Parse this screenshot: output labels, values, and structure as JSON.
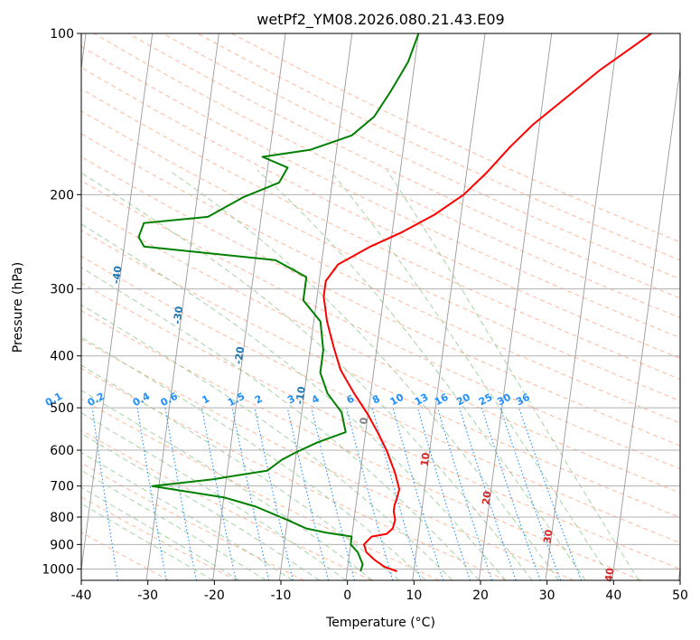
{
  "chart_data": {
    "type": "line",
    "title": "wetPf2_YM08.2026.080.21.43.E09",
    "xlabel": "Temperature (°C)",
    "ylabel": "Pressure (hPa)",
    "xlim": [
      -40,
      50
    ],
    "ylim": [
      1050,
      100
    ],
    "y_scale": "log",
    "grid": true,
    "x_ticks": [
      -40,
      -30,
      -20,
      -10,
      0,
      10,
      20,
      30,
      40,
      50
    ],
    "y_ticks": [
      100,
      200,
      300,
      400,
      500,
      600,
      700,
      800,
      900,
      1000
    ],
    "skew_isotherms": [
      -100,
      -90,
      -80,
      -70,
      -60,
      -50,
      -40,
      -30,
      -20,
      -10,
      0,
      10,
      20,
      30,
      40
    ],
    "mixing_ratio_labels": [
      "0.1",
      "0.2",
      "0.4",
      "0.6",
      "1",
      "1.5",
      "2",
      "3",
      "4",
      "6",
      "8",
      "10",
      "13",
      "16",
      "20",
      "25",
      "30",
      "36"
    ],
    "colors": {
      "temperature": "#ff0000",
      "dewpoint": "#008000",
      "isotherm_label": "#1f77b4",
      "warm_isotherm_label": "#d62728",
      "zero_label": "#808080",
      "mixing_ratio": "#1e90ff",
      "dry_adiabat": "#ffa07a",
      "moist_adiabat": "#90c890",
      "isobar": "#b0b0b0"
    },
    "series": [
      {
        "name": "Temperature",
        "points": [
          [
            7.5,
            1010
          ],
          [
            5.5,
            990
          ],
          [
            3.8,
            960
          ],
          [
            2.5,
            930
          ],
          [
            2.0,
            900
          ],
          [
            3.0,
            870
          ],
          [
            5.2,
            860
          ],
          [
            6.0,
            840
          ],
          [
            6.2,
            810
          ],
          [
            5.8,
            780
          ],
          [
            5.8,
            760
          ],
          [
            6.0,
            740
          ],
          [
            6.2,
            710
          ],
          [
            5.2,
            660
          ],
          [
            3.5,
            600
          ],
          [
            2.0,
            560
          ],
          [
            0.0,
            515
          ],
          [
            -2.5,
            470
          ],
          [
            -5.0,
            425
          ],
          [
            -6.5,
            385
          ],
          [
            -8.0,
            345
          ],
          [
            -9.0,
            310
          ],
          [
            -9.0,
            290
          ],
          [
            -7.5,
            270
          ],
          [
            -3.0,
            250
          ],
          [
            1.5,
            235
          ],
          [
            6.0,
            218
          ],
          [
            10.0,
            200
          ],
          [
            13.0,
            182
          ],
          [
            16.0,
            163
          ],
          [
            19.0,
            148
          ],
          [
            24.0,
            130
          ],
          [
            28.0,
            117
          ],
          [
            32.0,
            107
          ],
          [
            35.0,
            100
          ]
        ]
      },
      {
        "name": "Dewpoint",
        "points": [
          [
            2.0,
            1010
          ],
          [
            2.2,
            980
          ],
          [
            1.2,
            930
          ],
          [
            0.0,
            900
          ],
          [
            0.0,
            870
          ],
          [
            -4.0,
            855
          ],
          [
            -7.0,
            840
          ],
          [
            -10.0,
            810
          ],
          [
            -15.0,
            765
          ],
          [
            -20.0,
            735
          ],
          [
            -31.0,
            700
          ],
          [
            -22.0,
            680
          ],
          [
            -14.0,
            655
          ],
          [
            -12.0,
            625
          ],
          [
            -10.0,
            605
          ],
          [
            -7.0,
            580
          ],
          [
            -3.0,
            555
          ],
          [
            -4.0,
            510
          ],
          [
            -6.5,
            470
          ],
          [
            -8.0,
            430
          ],
          [
            -8.0,
            390
          ],
          [
            -9.0,
            345
          ],
          [
            -12.0,
            315
          ],
          [
            -12.0,
            285
          ],
          [
            -17.0,
            265
          ],
          [
            -37.0,
            250
          ],
          [
            -38.0,
            240
          ],
          [
            -37.5,
            226
          ],
          [
            -28.0,
            220
          ],
          [
            -23.0,
            202
          ],
          [
            -18.0,
            190
          ],
          [
            -17.0,
            178
          ],
          [
            -21.0,
            170
          ],
          [
            -14.0,
            165
          ],
          [
            -8.0,
            155
          ],
          [
            -5.0,
            143
          ],
          [
            -3.0,
            128
          ],
          [
            -1.0,
            113
          ],
          [
            0.0,
            100
          ]
        ]
      }
    ]
  }
}
